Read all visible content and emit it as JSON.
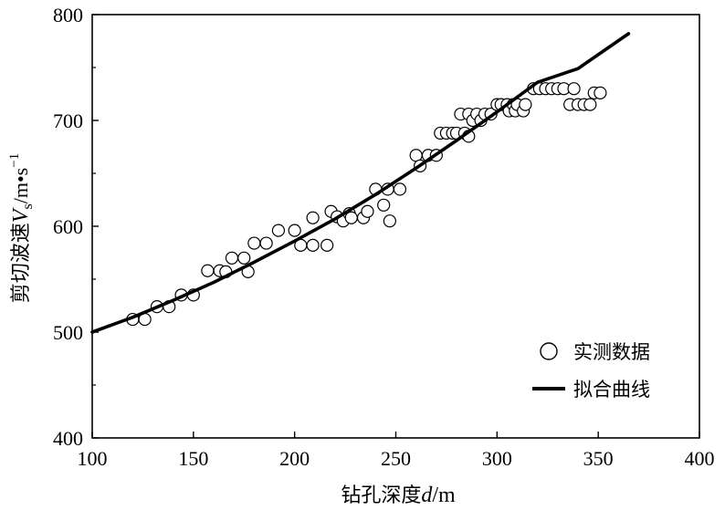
{
  "chart_data": {
    "type": "scatter",
    "title": "",
    "xlabel": {
      "prefix": "钻孔深度",
      "symbol": "d",
      "unit": "/m"
    },
    "ylabel": {
      "prefix": "剪切波速",
      "symbol": "V",
      "sub": "s",
      "unit": "/m•s",
      "sup": "−1"
    },
    "xlim": [
      100,
      400
    ],
    "ylim": [
      400,
      800
    ],
    "xticks": [
      100,
      150,
      200,
      250,
      300,
      350,
      400
    ],
    "yticks": [
      400,
      500,
      600,
      700,
      800
    ],
    "grid": false,
    "legend_position": "bottom-right",
    "series": [
      {
        "name": "实测数据",
        "kind": "scatter",
        "marker": "open-circle",
        "points": [
          [
            120,
            512
          ],
          [
            126,
            512
          ],
          [
            132,
            524
          ],
          [
            138,
            524
          ],
          [
            144,
            535
          ],
          [
            150,
            535
          ],
          [
            157,
            558
          ],
          [
            163,
            558
          ],
          [
            166,
            557
          ],
          [
            169,
            570
          ],
          [
            175,
            570
          ],
          [
            177,
            557
          ],
          [
            180,
            584
          ],
          [
            186,
            584
          ],
          [
            192,
            596
          ],
          [
            200,
            596
          ],
          [
            203,
            582
          ],
          [
            209,
            582
          ],
          [
            209,
            608
          ],
          [
            216,
            582
          ],
          [
            218,
            614
          ],
          [
            221,
            609
          ],
          [
            224,
            605
          ],
          [
            227,
            612
          ],
          [
            228,
            608
          ],
          [
            234,
            608
          ],
          [
            236,
            614
          ],
          [
            240,
            635
          ],
          [
            244,
            620
          ],
          [
            246,
            635
          ],
          [
            247,
            605
          ],
          [
            252,
            635
          ],
          [
            260,
            667
          ],
          [
            262,
            657
          ],
          [
            266,
            667
          ],
          [
            270,
            667
          ],
          [
            272,
            688
          ],
          [
            275,
            688
          ],
          [
            278,
            688
          ],
          [
            280,
            688
          ],
          [
            282,
            706
          ],
          [
            284,
            688
          ],
          [
            286,
            706
          ],
          [
            286,
            685
          ],
          [
            288,
            700
          ],
          [
            290,
            706
          ],
          [
            292,
            700
          ],
          [
            294,
            706
          ],
          [
            297,
            706
          ],
          [
            300,
            715
          ],
          [
            302,
            715
          ],
          [
            305,
            715
          ],
          [
            306,
            709
          ],
          [
            308,
            715
          ],
          [
            309,
            709
          ],
          [
            310,
            715
          ],
          [
            313,
            709
          ],
          [
            314,
            715
          ],
          [
            318,
            730
          ],
          [
            321,
            730
          ],
          [
            324,
            730
          ],
          [
            327,
            730
          ],
          [
            330,
            730
          ],
          [
            333,
            730
          ],
          [
            336,
            715
          ],
          [
            338,
            730
          ],
          [
            340,
            715
          ],
          [
            343,
            715
          ],
          [
            346,
            715
          ],
          [
            348,
            726
          ],
          [
            351,
            726
          ]
        ]
      },
      {
        "name": "拟合曲线",
        "kind": "line",
        "points": [
          [
            100,
            500
          ],
          [
            120,
            514
          ],
          [
            140,
            530
          ],
          [
            160,
            547
          ],
          [
            180,
            566
          ],
          [
            200,
            586
          ],
          [
            220,
            607
          ],
          [
            240,
            630
          ],
          [
            260,
            655
          ],
          [
            280,
            681
          ],
          [
            300,
            708
          ],
          [
            320,
            736
          ],
          [
            340,
            749
          ],
          [
            365,
            782
          ]
        ]
      }
    ]
  }
}
